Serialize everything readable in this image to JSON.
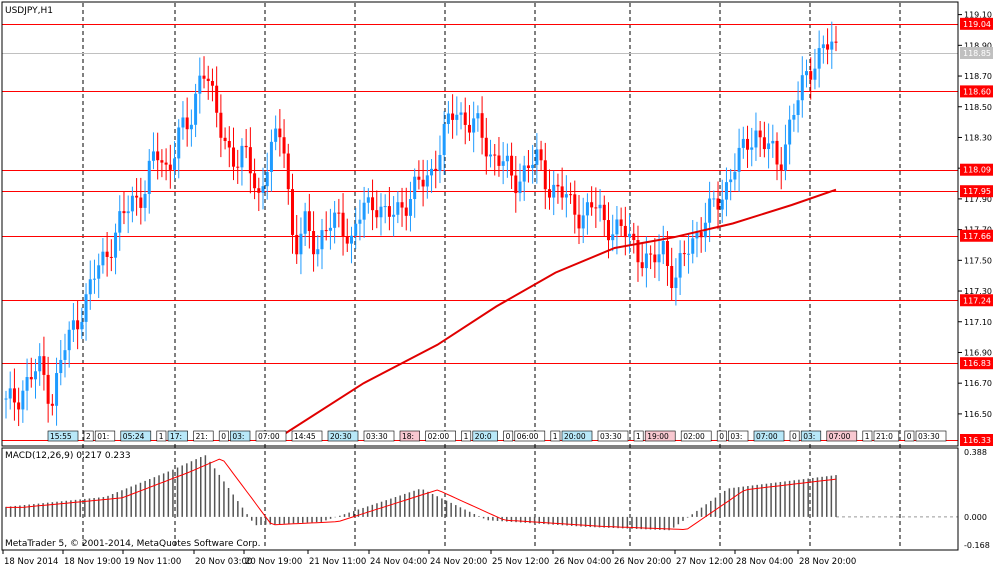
{
  "main": {
    "title": "USDJPY,H1",
    "levels": [
      {
        "label": "119.04",
        "value": 119.04
      },
      {
        "label": "118.60",
        "value": 118.6
      },
      {
        "label": "118.09",
        "value": 118.09
      },
      {
        "label": "117.95",
        "value": 117.95
      },
      {
        "label": "117.66",
        "value": 117.66
      },
      {
        "label": "117.24",
        "value": 117.24
      },
      {
        "label": "116.83",
        "value": 116.83
      },
      {
        "label": "116.33",
        "value": 116.33
      }
    ],
    "current_price": {
      "label": "118.85",
      "value": 118.85
    },
    "price_ticks": [
      "119.10",
      "118.90",
      "118.70",
      "118.50",
      "118.30",
      "118.10",
      "117.90",
      "117.70",
      "117.50",
      "117.30",
      "117.10",
      "116.90",
      "116.70",
      "116.50"
    ],
    "session_tags": [
      {
        "text": "15:55",
        "style": "blue"
      },
      {
        "text": "2",
        "style": "plain"
      },
      {
        "text": "01:",
        "style": "plain"
      },
      {
        "text": "05:24",
        "style": "blue"
      },
      {
        "text": "1",
        "style": "plain"
      },
      {
        "text": "17:",
        "style": "blue"
      },
      {
        "text": "21:",
        "style": "plain"
      },
      {
        "text": "0",
        "style": "plain"
      },
      {
        "text": "03:",
        "style": "blue"
      },
      {
        "text": "07:00",
        "style": "plain"
      },
      {
        "text": "14:45",
        "style": "plain"
      },
      {
        "text": "20:30",
        "style": "blue"
      },
      {
        "text": "03:30",
        "style": "plain"
      },
      {
        "text": "18:",
        "style": "pink"
      },
      {
        "text": "02:00",
        "style": "plain"
      },
      {
        "text": "1",
        "style": "plain"
      },
      {
        "text": "20:0",
        "style": "blue"
      },
      {
        "text": "0",
        "style": "plain"
      },
      {
        "text": "06:00",
        "style": "plain"
      },
      {
        "text": "1",
        "style": "plain"
      },
      {
        "text": "20:00",
        "style": "blue"
      },
      {
        "text": "03:30",
        "style": "plain"
      },
      {
        "text": "1",
        "style": "plain"
      },
      {
        "text": "19:00",
        "style": "pink"
      },
      {
        "text": "02:00",
        "style": "plain"
      },
      {
        "text": "0",
        "style": "plain"
      },
      {
        "text": "03:",
        "style": "plain"
      },
      {
        "text": "07:00",
        "style": "blue"
      },
      {
        "text": "0",
        "style": "plain"
      },
      {
        "text": "03:",
        "style": "blue"
      },
      {
        "text": "07:00",
        "style": "pink"
      },
      {
        "text": "1",
        "style": "plain"
      },
      {
        "text": "21:0",
        "style": "plain"
      },
      {
        "text": "0",
        "style": "plain"
      },
      {
        "text": "03:30",
        "style": "plain"
      }
    ]
  },
  "macd": {
    "label": "MACD(12,26,9) 0.217 0.233",
    "ticks": [
      {
        "label": "0.388",
        "value": 0.388
      },
      {
        "label": "0.000",
        "value": 0.0
      },
      {
        "label": "-0.168",
        "value": -0.168
      }
    ]
  },
  "copyright": "MetaTrader 5, © 2001-2014, MetaQuotes Software Corp.",
  "time_axis": [
    "18 Nov 2014",
    "18 Nov 19:00",
    "19 Nov 11:00",
    "20 Nov 03:00",
    "20 Nov 19:00",
    "21 Nov 11:00",
    "24 Nov 04:00",
    "24 Nov 20:00",
    "25 Nov 12:00",
    "26 Nov 04:00",
    "26 Nov 20:00",
    "27 Nov 12:00",
    "28 Nov 04:00",
    "28 Nov 20:00"
  ],
  "colors": {
    "bull": "#1e9bff",
    "bear": "#ff0000",
    "level": "#ff0000",
    "ma": "#e00000",
    "grid": "#000000",
    "hist": "#555555",
    "signal": "#ff0000"
  },
  "chart_data": {
    "type": "candlestick",
    "title": "USDJPY,H1",
    "ylim": [
      116.33,
      119.13
    ],
    "moving_average": [
      {
        "i": 0,
        "v": 116.33
      },
      {
        "i": 30,
        "v": 116.7
      },
      {
        "i": 55,
        "v": 116.95
      },
      {
        "i": 75,
        "v": 117.2
      },
      {
        "i": 95,
        "v": 117.42
      },
      {
        "i": 115,
        "v": 117.58
      },
      {
        "i": 135,
        "v": 117.65
      },
      {
        "i": 155,
        "v": 117.74
      },
      {
        "i": 175,
        "v": 117.86
      },
      {
        "i": 190,
        "v": 117.96
      }
    ],
    "closes": [
      116.55,
      116.62,
      116.72,
      116.8,
      116.6,
      116.9,
      117.1,
      117.25,
      117.45,
      117.6,
      117.75,
      117.9,
      117.95,
      118.2,
      118.1,
      118.3,
      118.4,
      118.8,
      118.5,
      118.3,
      118.1,
      118.2,
      117.9,
      118.2,
      118.4,
      117.5,
      117.75,
      117.6,
      117.7,
      117.8,
      117.6,
      117.85,
      117.9,
      117.75,
      117.85,
      117.9,
      118.0,
      118.1,
      118.3,
      118.5,
      118.4,
      118.35,
      118.2,
      118.15,
      118.0,
      118.1,
      118.15,
      118.0,
      117.95,
      117.85,
      117.8,
      117.85,
      117.75,
      117.7,
      117.65,
      117.55,
      117.45,
      117.6,
      117.35,
      117.55,
      117.7,
      117.8,
      117.9,
      118.1,
      118.2,
      118.35,
      118.25,
      118.1,
      118.4,
      118.6,
      118.8,
      118.9,
      118.85
    ]
  }
}
